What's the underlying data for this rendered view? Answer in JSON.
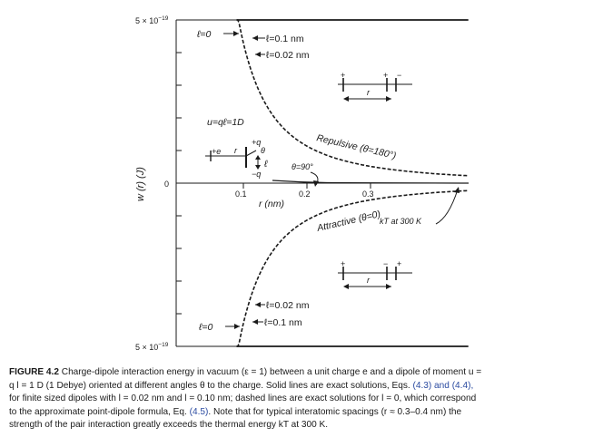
{
  "figure": {
    "y_top_label": "5 × 10",
    "y_top_exp": "−19",
    "y_bottom_label": "5 × 10",
    "y_bottom_exp": "−19",
    "y_zero_label": "0",
    "y_axis_label": "w (r) (J)",
    "x_axis_label": "r (nm)",
    "x_ticks": [
      "0.1",
      "0.2",
      "0.3"
    ],
    "top_l0": "ℓ=0",
    "top_l01": "ℓ=0.1 nm",
    "top_l002": "ℓ=0.02 nm",
    "bot_l0": "ℓ=0",
    "bot_l01": "ℓ=0.1 nm",
    "bot_l002": "ℓ=0.02 nm",
    "u_formula": "u=qℓ=1D",
    "plus_e": "+e",
    "r_small": "r",
    "plus_q": "+q",
    "minus_q": "−q",
    "theta": "θ",
    "ell_small": "ℓ",
    "theta90": "θ=90°",
    "repulsive": "Repulsive (θ=180°)",
    "attractive": "Attractive (θ=0)",
    "kT": "kT at 300 K",
    "inset_r": "r"
  },
  "chart_data": {
    "type": "line",
    "xlabel": "r (nm)",
    "ylabel": "w (r) (J)",
    "xlim": [
      0,
      0.5
    ],
    "ylim": [
      -5e-19,
      5e-19
    ],
    "x_ticks": [
      0.1,
      0.2,
      0.3
    ],
    "kT_300K_J": 4.1e-21,
    "series": [
      {
        "name": "Repulsive (θ=180°), ℓ=0",
        "style": "dashed"
      },
      {
        "name": "Repulsive (θ=180°), ℓ=0.02 nm",
        "style": "solid"
      },
      {
        "name": "Repulsive (θ=180°), ℓ=0.1 nm",
        "style": "solid"
      },
      {
        "name": "Attractive (θ=0), ℓ=0",
        "style": "dashed"
      },
      {
        "name": "Attractive (θ=0), ℓ=0.02 nm",
        "style": "solid"
      },
      {
        "name": "Attractive (θ=0), ℓ=0.1 nm",
        "style": "solid"
      },
      {
        "name": "θ=90°",
        "style": "solid"
      }
    ]
  },
  "caption": {
    "label": "FIGURE 4.2",
    "line1a": " Charge-dipole interaction energy in vacuum (ε = 1) between a unit charge e and a dipole of moment u =",
    "line2a": "q l = 1 D (1 Debye) oriented at different angles θ to the charge. Solid lines are exact solutions, Eqs. ",
    "ref1": "(4.3) and (4.4),",
    "line3": "for finite sized dipoles with l = 0.02 nm and l = 0.10 nm; dashed lines are exact solutions for l = 0, which correspond",
    "line4a": "to the approximate point-dipole formula, Eq. ",
    "ref2": "(4.5)",
    "line4b": ". Note that for typical interatomic spacings (r ≈ 0.3–0.4 nm) the",
    "line5": "strength of the pair interaction greatly exceeds the thermal energy kT at 300 K."
  }
}
